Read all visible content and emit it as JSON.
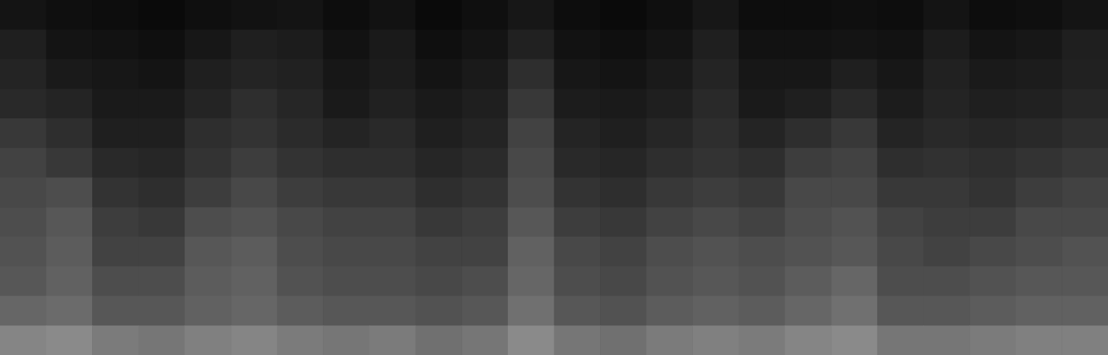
{
  "chart_data": {
    "type": "heatmap",
    "tick_labels": false,
    "cells": [
      [
        8,
        6,
        5,
        4,
        6,
        7,
        8,
        5,
        7,
        4,
        6,
        9,
        5,
        4,
        6,
        9,
        5,
        5,
        6,
        5,
        8,
        5,
        6,
        8
      ],
      [
        12,
        8,
        7,
        6,
        9,
        12,
        11,
        7,
        10,
        6,
        8,
        13,
        7,
        6,
        8,
        12,
        7,
        7,
        8,
        7,
        11,
        8,
        9,
        12
      ],
      [
        14,
        10,
        9,
        8,
        12,
        14,
        13,
        9,
        11,
        8,
        10,
        18,
        9,
        8,
        10,
        14,
        9,
        9,
        12,
        9,
        13,
        10,
        11,
        13
      ],
      [
        16,
        14,
        10,
        10,
        14,
        18,
        15,
        10,
        13,
        10,
        12,
        22,
        11,
        10,
        12,
        16,
        10,
        12,
        16,
        11,
        14,
        12,
        13,
        15
      ],
      [
        22,
        18,
        12,
        12,
        18,
        20,
        17,
        14,
        16,
        12,
        14,
        26,
        14,
        12,
        15,
        18,
        14,
        18,
        22,
        14,
        16,
        15,
        16,
        18
      ],
      [
        26,
        22,
        16,
        15,
        20,
        24,
        20,
        18,
        18,
        15,
        17,
        28,
        16,
        15,
        18,
        20,
        18,
        24,
        26,
        18,
        19,
        18,
        20,
        22
      ],
      [
        28,
        30,
        20,
        18,
        24,
        28,
        24,
        22,
        22,
        18,
        20,
        30,
        20,
        18,
        22,
        24,
        22,
        28,
        28,
        22,
        22,
        20,
        24,
        26
      ],
      [
        30,
        34,
        24,
        22,
        30,
        32,
        28,
        26,
        26,
        22,
        24,
        34,
        24,
        22,
        26,
        28,
        26,
        30,
        32,
        26,
        24,
        24,
        28,
        28
      ],
      [
        32,
        36,
        26,
        26,
        34,
        36,
        30,
        28,
        28,
        26,
        26,
        38,
        28,
        26,
        30,
        32,
        30,
        32,
        34,
        28,
        26,
        28,
        30,
        32
      ],
      [
        34,
        38,
        30,
        30,
        36,
        38,
        32,
        30,
        30,
        28,
        30,
        40,
        30,
        28,
        32,
        34,
        32,
        36,
        40,
        30,
        30,
        32,
        34,
        34
      ],
      [
        40,
        42,
        34,
        34,
        38,
        40,
        36,
        34,
        34,
        32,
        34,
        44,
        34,
        32,
        36,
        38,
        36,
        40,
        44,
        34,
        34,
        36,
        38,
        38
      ],
      [
        52,
        54,
        48,
        46,
        50,
        52,
        48,
        46,
        48,
        44,
        46,
        54,
        46,
        44,
        48,
        50,
        48,
        52,
        54,
        46,
        46,
        48,
        50,
        50
      ]
    ]
  }
}
